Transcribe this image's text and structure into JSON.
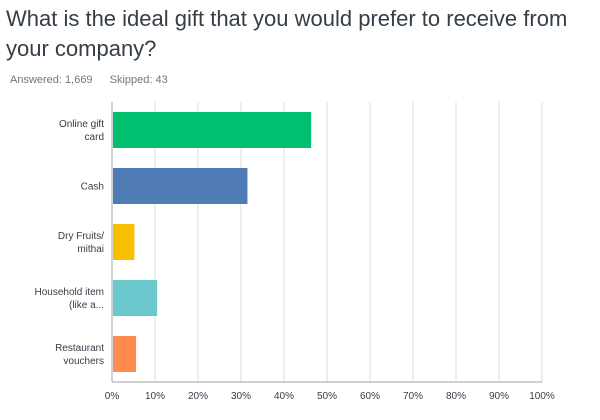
{
  "question": "What is the ideal gift that you would prefer to receive from your company?",
  "stats": {
    "answered": "Answered: 1,669",
    "skipped": "Skipped: 43"
  },
  "colors": {
    "grid": "#d8dde0",
    "axis": "#9aa4ab",
    "text": "#333e48"
  },
  "chart_data": {
    "type": "bar",
    "orientation": "horizontal",
    "title": "",
    "xlabel": "",
    "ylabel": "",
    "xlim": [
      0,
      100
    ],
    "ticks": [
      "0%",
      "10%",
      "20%",
      "30%",
      "40%",
      "50%",
      "60%",
      "70%",
      "80%",
      "90%",
      "100%"
    ],
    "grid": true,
    "categories": [
      [
        "Online gift",
        "card"
      ],
      [
        "Cash"
      ],
      [
        "Dry Fruits/",
        "mithai"
      ],
      [
        "Household item",
        "(like a..."
      ],
      [
        "Restaurant",
        "vouchers"
      ]
    ],
    "values": [
      46.3,
      31.5,
      5.2,
      10.5,
      5.6
    ],
    "bar_colors": [
      "#00bf6f",
      "#507cb6",
      "#f9be00",
      "#6bc8cd",
      "#ff8b4f"
    ]
  }
}
